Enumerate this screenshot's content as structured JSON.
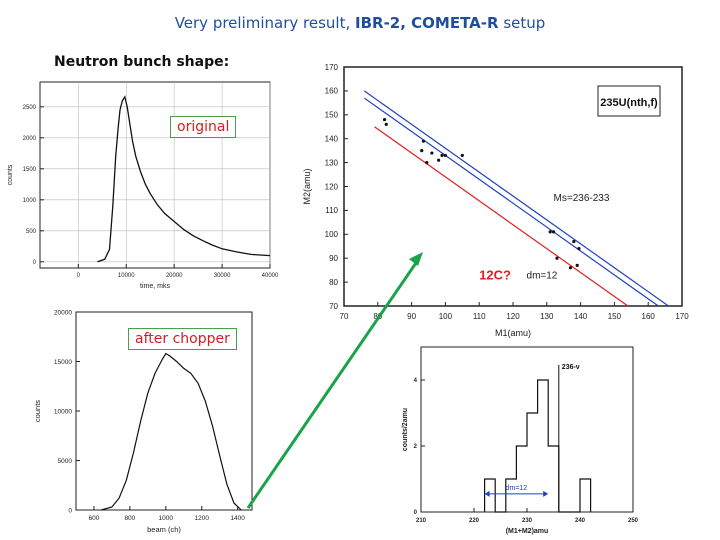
{
  "slide": {
    "title_prefix": "Very preliminary result, ",
    "title_bold": "IBR-2, COMETA-R",
    "title_suffix": " setup",
    "subtitle": "Neutron bunch shape:",
    "tag_original": "original",
    "tag_chopper": "after chopper",
    "accent": "#1f4e9c",
    "arrow_color": "#1aa34a"
  },
  "chart_data": [
    {
      "type": "line",
      "id": "original",
      "xlabel": "time, mks",
      "ylabel": "counts",
      "xlim": [
        -8000,
        40000
      ],
      "ylim": [
        -100,
        2900
      ],
      "xticks": [
        0,
        10000,
        20000,
        30000,
        40000
      ],
      "yticks": [
        0,
        500,
        1000,
        1500,
        2000,
        2500
      ],
      "xtick_labels": [
        "0",
        "10000",
        "20000",
        "30000",
        "40000"
      ],
      "ytick_labels": [
        "0",
        "500",
        "1000",
        "1500",
        "2000",
        "2500"
      ],
      "grid": true,
      "x": [
        4000,
        5500,
        6500,
        7200,
        7800,
        8300,
        8700,
        9200,
        9700,
        10200,
        10700,
        11300,
        12000,
        13000,
        14000,
        15000,
        16500,
        18000,
        20000,
        22000,
        24000,
        26000,
        28000,
        30000,
        33000,
        36000,
        40000
      ],
      "y": [
        0,
        40,
        200,
        900,
        1700,
        2150,
        2450,
        2600,
        2660,
        2500,
        2250,
        1950,
        1700,
        1450,
        1250,
        1100,
        920,
        780,
        650,
        520,
        420,
        340,
        270,
        210,
        160,
        120,
        100
      ]
    },
    {
      "type": "line",
      "id": "after_chopper",
      "xlabel": "beam (ch)",
      "ylabel": "counts",
      "xlim": [
        500,
        1480
      ],
      "ylim": [
        0,
        20000
      ],
      "xticks": [
        600,
        800,
        1000,
        1200,
        1400
      ],
      "yticks": [
        0,
        5000,
        10000,
        15000,
        20000
      ],
      "xtick_labels": [
        "600",
        "800",
        "1000",
        "1200",
        "1400"
      ],
      "ytick_labels": [
        "0",
        "5000",
        "10000",
        "15000",
        "20000"
      ],
      "grid": false,
      "x": [
        640,
        700,
        740,
        780,
        820,
        860,
        900,
        940,
        980,
        1000,
        1020,
        1060,
        1100,
        1140,
        1180,
        1220,
        1260,
        1300,
        1340,
        1380,
        1420
      ],
      "y": [
        0,
        300,
        1200,
        3000,
        5800,
        9000,
        11800,
        13800,
        15200,
        15800,
        15600,
        15000,
        14300,
        13800,
        12800,
        11000,
        8500,
        5500,
        2600,
        700,
        0
      ]
    },
    {
      "type": "scatter",
      "id": "mass_correlation",
      "xlabel": "M1(amu)",
      "ylabel": "M2(amu)",
      "xlim": [
        70,
        170
      ],
      "ylim": [
        70,
        170
      ],
      "xticks": [
        70,
        80,
        90,
        100,
        110,
        120,
        130,
        140,
        150,
        160,
        170
      ],
      "yticks": [
        70,
        80,
        90,
        100,
        110,
        120,
        130,
        140,
        150,
        160,
        170
      ],
      "xtick_labels": [
        "70",
        "80",
        "90",
        "100",
        "110",
        "120",
        "130",
        "140",
        "150",
        "160",
        "170"
      ],
      "ytick_labels": [
        "70",
        "80",
        "90",
        "100",
        "110",
        "120",
        "130",
        "140",
        "150",
        "160",
        "170"
      ],
      "legend_label": "235U(nth,f)",
      "points": [
        {
          "x": 82,
          "y": 148
        },
        {
          "x": 82.5,
          "y": 146
        },
        {
          "x": 93,
          "y": 135
        },
        {
          "x": 93.5,
          "y": 139
        },
        {
          "x": 94.5,
          "y": 130
        },
        {
          "x": 96,
          "y": 134
        },
        {
          "x": 98,
          "y": 131
        },
        {
          "x": 99,
          "y": 133
        },
        {
          "x": 100,
          "y": 133
        },
        {
          "x": 105,
          "y": 133
        },
        {
          "x": 131,
          "y": 101
        },
        {
          "x": 132,
          "y": 101
        },
        {
          "x": 133,
          "y": 90
        },
        {
          "x": 137,
          "y": 86
        },
        {
          "x": 138,
          "y": 97
        },
        {
          "x": 139,
          "y": 87
        },
        {
          "x": 139.5,
          "y": 94
        }
      ],
      "lines": [
        {
          "name": "Ms=236",
          "color": "#2040c0",
          "m1_start": 76,
          "sum": 236
        },
        {
          "name": "Ms=233",
          "color": "#2040c0",
          "m1_start": 76,
          "sum": 233
        },
        {
          "name": "12C",
          "color": "#e02020",
          "m1_start": 79,
          "sum": 224
        }
      ],
      "annotations": {
        "ms_label": "Ms=236-233",
        "dm_label": "dm=12",
        "question": "12C?"
      }
    },
    {
      "type": "bar",
      "id": "sum_histogram",
      "xlabel": "(M1+M2)amu",
      "ylabel": "counts/2amu",
      "xlim": [
        210,
        250
      ],
      "ylim": [
        0,
        5
      ],
      "xticks": [
        210,
        220,
        230,
        240,
        250
      ],
      "yticks": [
        0,
        2,
        4
      ],
      "xtick_labels": [
        "210",
        "220",
        "230",
        "240",
        "250"
      ],
      "ytick_labels": [
        "0",
        "2",
        "4"
      ],
      "bins": [
        {
          "from": 222,
          "to": 224,
          "value": 1
        },
        {
          "from": 224,
          "to": 226,
          "value": 0
        },
        {
          "from": 226,
          "to": 228,
          "value": 1
        },
        {
          "from": 228,
          "to": 230,
          "value": 2
        },
        {
          "from": 230,
          "to": 232,
          "value": 3
        },
        {
          "from": 232,
          "to": 234,
          "value": 4
        },
        {
          "from": 234,
          "to": 236,
          "value": 2
        },
        {
          "from": 236,
          "to": 238,
          "value": 0
        },
        {
          "from": 238,
          "to": 240,
          "value": 0
        },
        {
          "from": 240,
          "to": 242,
          "value": 1
        }
      ],
      "marker_x": 236,
      "marker_label": "236-ν",
      "dm_label": "dm=12",
      "dm_range": [
        222,
        234
      ]
    }
  ]
}
